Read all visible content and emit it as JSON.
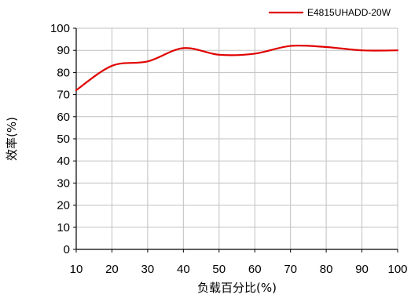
{
  "chart_data": {
    "type": "line",
    "title": "",
    "xlabel": "负载百分比(%)",
    "ylabel": "效率(%)",
    "xlim": [
      10,
      100
    ],
    "ylim": [
      0,
      100
    ],
    "x_ticks": [
      10,
      20,
      30,
      40,
      50,
      60,
      70,
      80,
      90,
      100
    ],
    "y_ticks": [
      0,
      10,
      20,
      30,
      40,
      50,
      60,
      70,
      80,
      90,
      100
    ],
    "grid": true,
    "smooth": true,
    "legend_position": "top-right",
    "series": [
      {
        "name": "E4815UHADD-20W",
        "color": "#e00000",
        "x": [
          10,
          20,
          30,
          40,
          50,
          60,
          70,
          80,
          90,
          100
        ],
        "y": [
          72,
          83,
          85,
          91,
          88,
          88.5,
          92,
          91.5,
          90,
          90
        ]
      }
    ]
  }
}
